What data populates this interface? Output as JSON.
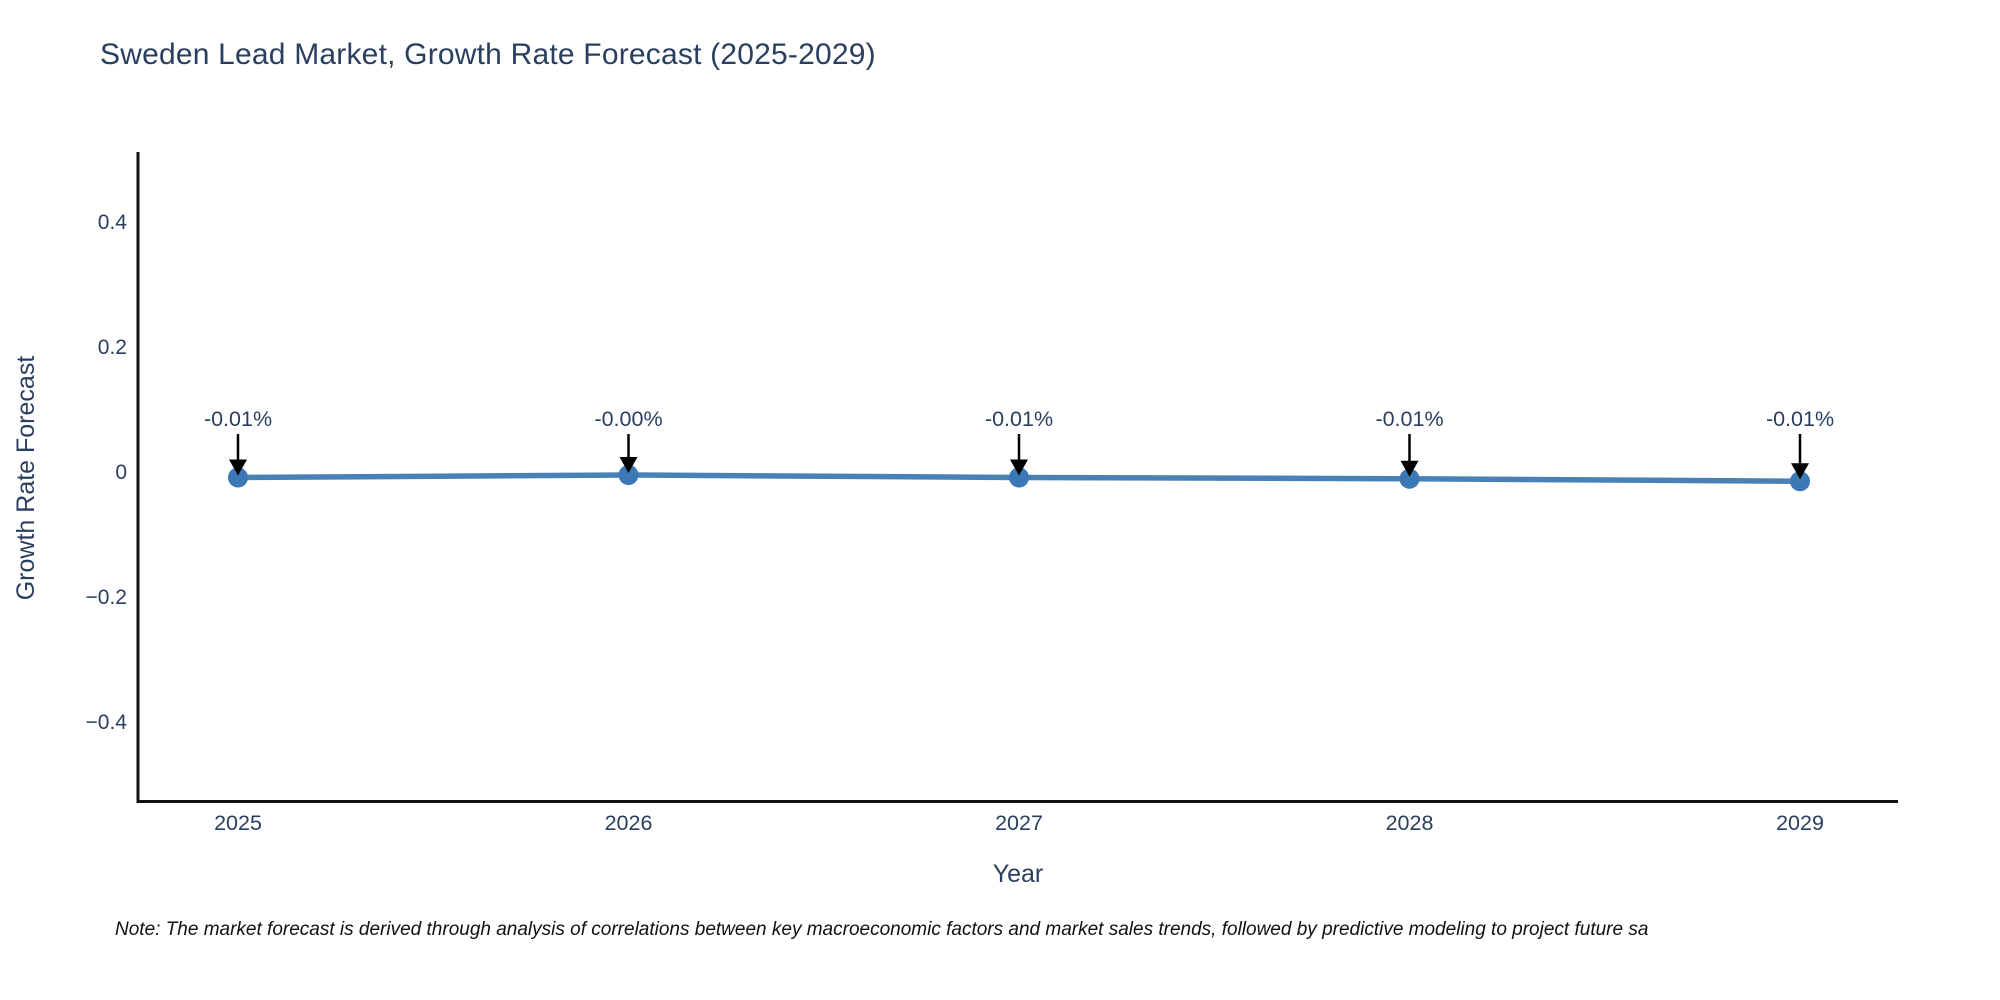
{
  "chart_data": {
    "type": "line",
    "title": "Sweden Lead Market, Growth Rate Forecast (2025-2029)",
    "xlabel": "Year",
    "ylabel": "Growth Rate Forecast",
    "categories": [
      "2025",
      "2026",
      "2027",
      "2028",
      "2029"
    ],
    "values": [
      -0.008,
      -0.004,
      -0.008,
      -0.01,
      -0.014
    ],
    "point_labels": [
      "-0.01%",
      "-0.00%",
      "-0.01%",
      "-0.01%",
      "-0.01%"
    ],
    "y_ticks": [
      {
        "v": 0.4,
        "label": "0.4"
      },
      {
        "v": 0.2,
        "label": "0.2"
      },
      {
        "v": 0,
        "label": "0"
      },
      {
        "v": -0.2,
        "label": "−0.2"
      },
      {
        "v": -0.4,
        "label": "−0.4"
      }
    ],
    "ylim": [
      -0.53,
      0.51
    ],
    "grid": false,
    "legend": false
  },
  "colors": {
    "line": "#4a81b4",
    "marker": "#3c78b6",
    "axis": "#111111",
    "label_text": "#2a3f5f",
    "arrow": "#000000"
  },
  "note": {
    "text": "Note: The market forecast is derived through analysis of correlations between key macroeconomic factors and market sales trends, followed by predictive modeling to project future sa"
  }
}
